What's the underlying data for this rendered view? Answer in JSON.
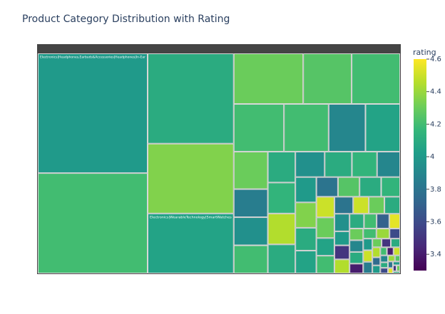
{
  "chart_data": {
    "type": "treemap",
    "title": "Product Category Distribution with Rating",
    "colorbar_title": "rating",
    "clim": [
      3.3,
      4.6
    ],
    "cticks": [
      3.4,
      3.6,
      3.8,
      4,
      4.2,
      4.4,
      4.6
    ],
    "colorscale": [
      "#440154",
      "#482878",
      "#3e4989",
      "#31688e",
      "#26828e",
      "#1f9e89",
      "#35b779",
      "#6ece58",
      "#b5de2b",
      "#fde725"
    ],
    "categories": [
      "Electronics|Headphones,Earbuds&Accessories|Headphones|In-Ear",
      null,
      null,
      null,
      "Electronics|WearableTechnology|SmartWatches",
      null,
      null,
      null,
      null,
      null,
      null,
      null,
      null,
      null,
      null,
      null,
      null,
      null,
      null,
      null,
      null,
      null,
      null,
      null,
      null,
      null,
      null,
      null,
      null,
      null,
      null,
      null,
      null,
      null,
      null,
      null,
      null,
      null,
      null,
      null,
      null,
      null,
      null,
      null,
      null,
      null,
      null,
      null,
      null,
      null,
      null,
      null,
      null,
      null,
      null,
      null,
      null,
      null,
      null,
      null,
      null,
      null,
      null,
      null,
      null,
      null,
      null,
      null,
      null,
      null,
      null,
      null,
      null,
      null,
      null,
      null,
      null,
      null
    ],
    "values": [
      247,
      207,
      146,
      113,
      97,
      66,
      46,
      46,
      45,
      40,
      33,
      31,
      24,
      18,
      18,
      18,
      16,
      16,
      16,
      15,
      14,
      13,
      12,
      11,
      10,
      10,
      9,
      9,
      8,
      8,
      8,
      7,
      7,
      7,
      6,
      6,
      6,
      5,
      5,
      5,
      5,
      4,
      4,
      4,
      4,
      3.5,
      3.5,
      3,
      3,
      3,
      3,
      2.5,
      2.5,
      2.5,
      2,
      2,
      2,
      2,
      1.5,
      1.5,
      1.5,
      1.5,
      1.2,
      1.2,
      1,
      1,
      1,
      1,
      0.8,
      0.8,
      0.8,
      0.6,
      0.6,
      0.5,
      0.5,
      0.4,
      0.4,
      0.3
    ],
    "ratings": [
      4.0,
      4.2,
      4.1,
      4.35,
      4.05,
      4.3,
      4.25,
      4.2,
      4.2,
      4.2,
      3.9,
      4.05,
      4.3,
      3.85,
      3.95,
      4.2,
      4.1,
      4.15,
      4.45,
      4.1,
      3.95,
      4.1,
      4.15,
      3.9,
      4.0,
      4.35,
      4.1,
      4.05,
      3.8,
      4.25,
      4.1,
      4.15,
      4.5,
      4.3,
      4.05,
      4.2,
      3.8,
      4.5,
      4.3,
      4.1,
      3.95,
      4.0,
      3.5,
      4.45,
      4.1,
      4.2,
      3.7,
      4.55,
      4.3,
      3.9,
      4.1,
      3.4,
      4.2,
      4.4,
      3.6,
      4.0,
      4.5,
      3.85,
      4.3,
      3.5,
      4.1,
      4.45,
      3.75,
      4.0,
      4.2,
      3.4,
      4.5,
      3.9,
      4.1,
      3.6,
      4.4,
      4.25,
      3.8,
      4.55,
      4.0,
      3.5,
      4.3,
      4.1
    ]
  }
}
